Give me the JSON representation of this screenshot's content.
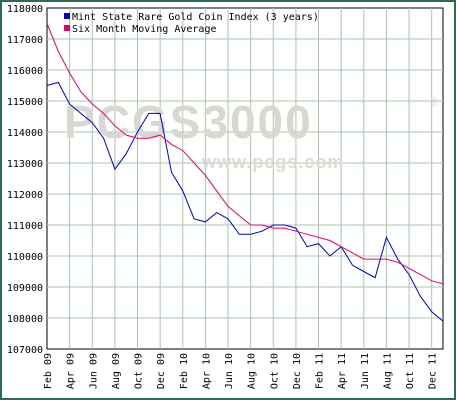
{
  "chart_data": {
    "type": "line",
    "title": "",
    "xlabel": "",
    "ylabel": "",
    "ylim": [
      107000,
      118000
    ],
    "yticks": [
      107000,
      108000,
      109000,
      110000,
      111000,
      112000,
      113000,
      114000,
      115000,
      116000,
      117000,
      118000
    ],
    "ytick_labels": [
      "107000",
      "108000",
      "109000",
      "110000",
      "111000",
      "112000",
      "113000",
      "114000",
      "115000",
      "116000",
      "117000",
      "118000"
    ],
    "x_tick_labels": [
      "Feb 09",
      "Apr 09",
      "Jun 09",
      "Aug 09",
      "Oct 09",
      "Dec 09",
      "Feb 10",
      "Apr 10",
      "Jun 10",
      "Aug 10",
      "Oct 10",
      "Dec 10",
      "Feb 11",
      "Apr 11",
      "Jun 11",
      "Aug 11",
      "Oct 11",
      "Dec 11"
    ],
    "legend_position": "top-left",
    "grid": true,
    "watermark": {
      "main": "PCGS3000",
      "sub": "www.pcgs.com",
      "mark": "®"
    },
    "series": [
      {
        "name": "Mint State Rare Gold Coin Index (3 years)",
        "color": "#0000cc",
        "values": [
          115500,
          115600,
          114900,
          114600,
          114300,
          113800,
          112800,
          113300,
          114000,
          114600,
          114600,
          112700,
          112100,
          111200,
          111100,
          111400,
          111200,
          110700,
          110700,
          110800,
          111000,
          111000,
          110900,
          110300,
          110400,
          110000,
          110300,
          109700,
          109500,
          109300,
          110600,
          109900,
          109400,
          108700,
          108200,
          107900
        ]
      },
      {
        "name": "Six Month Moving Average",
        "color": "#e8006e",
        "values": [
          117500,
          116600,
          115900,
          115300,
          114900,
          114600,
          114200,
          113900,
          113800,
          113800,
          113900,
          113600,
          113400,
          113000,
          112600,
          112100,
          111600,
          111300,
          111000,
          111000,
          110900,
          110900,
          110800,
          110700,
          110600,
          110500,
          110300,
          110100,
          109900,
          109900,
          109900,
          109800,
          109600,
          109400,
          109200,
          109100
        ]
      }
    ]
  }
}
